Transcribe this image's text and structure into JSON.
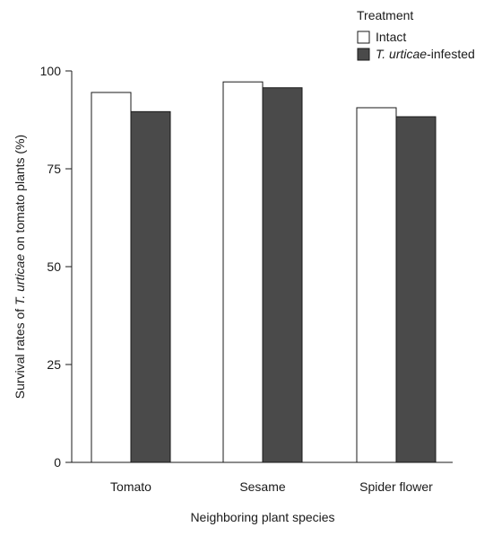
{
  "chart_data": {
    "type": "bar",
    "title": "",
    "xlabel": "Neighboring plant species",
    "ylabel_parts": [
      "Survival rates of ",
      "T. urticae",
      " on tomato plants (%)"
    ],
    "categories": [
      "Tomato",
      "Sesame",
      "Spider flower"
    ],
    "series": [
      {
        "name": "Intact",
        "name_parts": [
          "Intact"
        ],
        "color": "#ffffff",
        "values": [
          94.5,
          97.2,
          90.6
        ]
      },
      {
        "name": "T. urticae-infested",
        "name_parts": [
          "T. urticae",
          "-infested"
        ],
        "color": "#4a4a4a",
        "values": [
          89.6,
          95.7,
          88.3
        ]
      }
    ],
    "ylim": [
      0,
      100
    ],
    "yticks": [
      0,
      25,
      50,
      75,
      100
    ],
    "grid": false,
    "legend": {
      "title": "Treatment",
      "position": "top-right"
    }
  }
}
